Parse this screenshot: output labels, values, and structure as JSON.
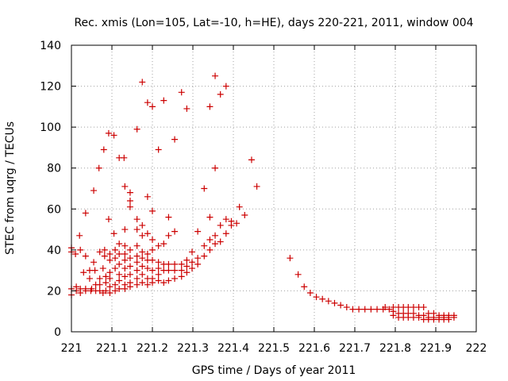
{
  "chart_data": {
    "type": "scatter",
    "title": "Rec. xmis (Lon=105, Lat=-10, h=HE), days 220-221, 2011, window 004",
    "xlabel": "GPS time / Days of year 2011",
    "ylabel": "STEC from uqrg / TECUs",
    "xlim": [
      221,
      222
    ],
    "ylim": [
      0,
      140
    ],
    "xticks": [
      "221",
      "221.1",
      "221.2",
      "221.3",
      "221.4",
      "221.5",
      "221.6",
      "221.7",
      "221.8",
      "221.9",
      "222"
    ],
    "yticks": [
      "0",
      "20",
      "40",
      "60",
      "80",
      "100",
      "120",
      "140"
    ],
    "grid": true,
    "marker": "+",
    "color": "#cc0000",
    "points": [
      [
        221.0,
        41
      ],
      [
        221.0,
        39
      ],
      [
        221.0,
        21
      ],
      [
        221.0,
        18
      ],
      [
        221.01,
        38
      ],
      [
        221.012,
        20
      ],
      [
        221.012,
        22
      ],
      [
        221.02,
        47
      ],
      [
        221.022,
        40
      ],
      [
        221.022,
        21
      ],
      [
        221.022,
        19
      ],
      [
        221.03,
        29
      ],
      [
        221.035,
        58
      ],
      [
        221.035,
        37
      ],
      [
        221.035,
        21
      ],
      [
        221.035,
        20
      ],
      [
        221.045,
        30
      ],
      [
        221.045,
        26
      ],
      [
        221.048,
        20
      ],
      [
        221.05,
        21
      ],
      [
        221.055,
        69
      ],
      [
        221.055,
        34
      ],
      [
        221.058,
        30
      ],
      [
        221.06,
        23
      ],
      [
        221.06,
        20
      ],
      [
        221.068,
        80
      ],
      [
        221.07,
        39
      ],
      [
        221.07,
        26
      ],
      [
        221.07,
        23
      ],
      [
        221.07,
        20
      ],
      [
        221.078,
        31
      ],
      [
        221.078,
        19
      ],
      [
        221.08,
        89
      ],
      [
        221.082,
        40
      ],
      [
        221.082,
        37
      ],
      [
        221.085,
        27
      ],
      [
        221.085,
        24
      ],
      [
        221.085,
        20
      ],
      [
        221.092,
        97
      ],
      [
        221.092,
        55
      ],
      [
        221.095,
        38
      ],
      [
        221.095,
        35
      ],
      [
        221.095,
        29
      ],
      [
        221.095,
        26
      ],
      [
        221.095,
        22
      ],
      [
        221.095,
        19
      ],
      [
        221.105,
        96
      ],
      [
        221.105,
        48
      ],
      [
        221.108,
        40
      ],
      [
        221.108,
        36
      ],
      [
        221.108,
        31
      ],
      [
        221.108,
        23
      ],
      [
        221.108,
        20
      ],
      [
        221.118,
        85
      ],
      [
        221.118,
        43
      ],
      [
        221.118,
        38
      ],
      [
        221.118,
        33
      ],
      [
        221.118,
        28
      ],
      [
        221.118,
        25
      ],
      [
        221.118,
        21
      ],
      [
        221.13,
        85
      ],
      [
        221.132,
        71
      ],
      [
        221.132,
        50
      ],
      [
        221.132,
        42
      ],
      [
        221.132,
        38
      ],
      [
        221.132,
        35
      ],
      [
        221.132,
        31
      ],
      [
        221.132,
        27
      ],
      [
        221.132,
        23
      ],
      [
        221.132,
        21
      ],
      [
        221.145,
        68
      ],
      [
        221.145,
        64
      ],
      [
        221.145,
        61
      ],
      [
        221.145,
        40
      ],
      [
        221.145,
        36
      ],
      [
        221.145,
        32
      ],
      [
        221.145,
        28
      ],
      [
        221.145,
        24
      ],
      [
        221.145,
        22
      ],
      [
        221.162,
        99
      ],
      [
        221.162,
        55
      ],
      [
        221.162,
        50
      ],
      [
        221.162,
        42
      ],
      [
        221.162,
        37
      ],
      [
        221.162,
        34
      ],
      [
        221.162,
        30
      ],
      [
        221.162,
        26
      ],
      [
        221.162,
        23
      ],
      [
        221.175,
        122
      ],
      [
        221.175,
        52
      ],
      [
        221.175,
        47
      ],
      [
        221.175,
        39
      ],
      [
        221.175,
        36
      ],
      [
        221.175,
        32
      ],
      [
        221.175,
        28
      ],
      [
        221.175,
        24
      ],
      [
        221.188,
        112
      ],
      [
        221.188,
        66
      ],
      [
        221.188,
        48
      ],
      [
        221.188,
        38
      ],
      [
        221.188,
        35
      ],
      [
        221.188,
        31
      ],
      [
        221.188,
        26
      ],
      [
        221.188,
        23
      ],
      [
        221.2,
        110
      ],
      [
        221.2,
        59
      ],
      [
        221.2,
        45
      ],
      [
        221.2,
        40
      ],
      [
        221.2,
        35
      ],
      [
        221.2,
        30
      ],
      [
        221.2,
        26
      ],
      [
        221.2,
        24
      ],
      [
        221.215,
        89
      ],
      [
        221.215,
        42
      ],
      [
        221.215,
        34
      ],
      [
        221.215,
        31
      ],
      [
        221.215,
        28
      ],
      [
        221.215,
        25
      ],
      [
        221.228,
        113
      ],
      [
        221.228,
        43
      ],
      [
        221.228,
        33
      ],
      [
        221.228,
        30
      ],
      [
        221.228,
        24
      ],
      [
        221.24,
        56
      ],
      [
        221.24,
        47
      ],
      [
        221.24,
        33
      ],
      [
        221.24,
        30
      ],
      [
        221.24,
        25
      ],
      [
        221.255,
        94
      ],
      [
        221.255,
        49
      ],
      [
        221.255,
        33
      ],
      [
        221.255,
        30
      ],
      [
        221.255,
        26
      ],
      [
        221.272,
        117
      ],
      [
        221.272,
        33
      ],
      [
        221.272,
        30
      ],
      [
        221.272,
        27
      ],
      [
        221.285,
        109
      ],
      [
        221.285,
        35
      ],
      [
        221.285,
        32
      ],
      [
        221.285,
        29
      ],
      [
        221.298,
        39
      ],
      [
        221.298,
        34
      ],
      [
        221.298,
        31
      ],
      [
        221.312,
        49
      ],
      [
        221.312,
        36
      ],
      [
        221.312,
        33
      ],
      [
        221.328,
        70
      ],
      [
        221.328,
        42
      ],
      [
        221.328,
        37
      ],
      [
        221.342,
        110
      ],
      [
        221.342,
        56
      ],
      [
        221.342,
        45
      ],
      [
        221.342,
        40
      ],
      [
        221.355,
        125
      ],
      [
        221.355,
        80
      ],
      [
        221.355,
        47
      ],
      [
        221.355,
        43
      ],
      [
        221.368,
        116
      ],
      [
        221.368,
        52
      ],
      [
        221.368,
        44
      ],
      [
        221.382,
        120
      ],
      [
        221.382,
        55
      ],
      [
        221.382,
        48
      ],
      [
        221.395,
        54
      ],
      [
        221.395,
        52
      ],
      [
        221.408,
        53
      ],
      [
        221.415,
        61
      ],
      [
        221.428,
        57
      ],
      [
        221.445,
        84
      ],
      [
        221.458,
        71
      ],
      [
        221.54,
        36
      ],
      [
        221.56,
        28
      ],
      [
        221.575,
        22
      ],
      [
        221.59,
        19
      ],
      [
        221.605,
        17
      ],
      [
        221.62,
        16
      ],
      [
        221.635,
        15
      ],
      [
        221.65,
        14
      ],
      [
        221.665,
        13
      ],
      [
        221.68,
        12
      ],
      [
        221.695,
        11
      ],
      [
        221.71,
        11
      ],
      [
        221.725,
        11
      ],
      [
        221.74,
        11
      ],
      [
        221.755,
        11
      ],
      [
        221.77,
        11
      ],
      [
        221.775,
        12
      ],
      [
        221.785,
        11
      ],
      [
        221.795,
        12
      ],
      [
        221.795,
        10
      ],
      [
        221.795,
        8
      ],
      [
        221.808,
        12
      ],
      [
        221.808,
        9
      ],
      [
        221.808,
        7
      ],
      [
        221.82,
        12
      ],
      [
        221.82,
        9
      ],
      [
        221.82,
        7
      ],
      [
        221.832,
        12
      ],
      [
        221.832,
        9
      ],
      [
        221.832,
        7
      ],
      [
        221.845,
        12
      ],
      [
        221.845,
        9
      ],
      [
        221.845,
        7
      ],
      [
        221.858,
        12
      ],
      [
        221.858,
        8
      ],
      [
        221.858,
        7
      ],
      [
        221.87,
        12
      ],
      [
        221.87,
        8
      ],
      [
        221.87,
        6
      ],
      [
        221.882,
        9
      ],
      [
        221.882,
        7
      ],
      [
        221.882,
        6
      ],
      [
        221.895,
        9
      ],
      [
        221.895,
        7
      ],
      [
        221.895,
        6
      ],
      [
        221.908,
        8
      ],
      [
        221.908,
        7
      ],
      [
        221.908,
        6
      ],
      [
        221.92,
        8
      ],
      [
        221.92,
        7
      ],
      [
        221.92,
        6
      ],
      [
        221.932,
        8
      ],
      [
        221.932,
        7
      ],
      [
        221.932,
        6
      ],
      [
        221.945,
        8
      ],
      [
        221.945,
        7
      ]
    ]
  }
}
